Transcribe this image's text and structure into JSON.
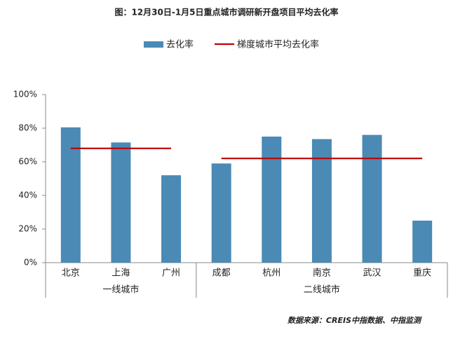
{
  "chart_data": {
    "type": "bar",
    "title": "图：12月30日-1月5日重点城市调研新开盘项目平均去化率",
    "source": "数据来源：CREIS中指数据、中指监测",
    "categories": [
      "北京",
      "上海",
      "广州",
      "成都",
      "杭州",
      "南京",
      "武汉",
      "重庆"
    ],
    "groups": [
      {
        "label": "一线城市",
        "count": 3
      },
      {
        "label": "二线城市",
        "count": 5
      }
    ],
    "series": [
      {
        "name": "去化率",
        "color": "#4a8ab5",
        "values": [
          80.5,
          71.5,
          52,
          59,
          75,
          73.5,
          76,
          25
        ]
      },
      {
        "name": "梯度城市平均去化率",
        "color": "#c00000",
        "type": "line",
        "values": [
          68,
          68,
          68,
          62,
          62,
          62,
          62,
          62
        ]
      }
    ],
    "ylim": [
      0,
      100
    ],
    "yticks": [
      {
        "value": 0,
        "label": "0%"
      },
      {
        "value": 20,
        "label": "20%"
      },
      {
        "value": 40,
        "label": "40%"
      },
      {
        "value": 60,
        "label": "60%"
      },
      {
        "value": 80,
        "label": "80%"
      },
      {
        "value": 100,
        "label": "100%"
      }
    ]
  }
}
